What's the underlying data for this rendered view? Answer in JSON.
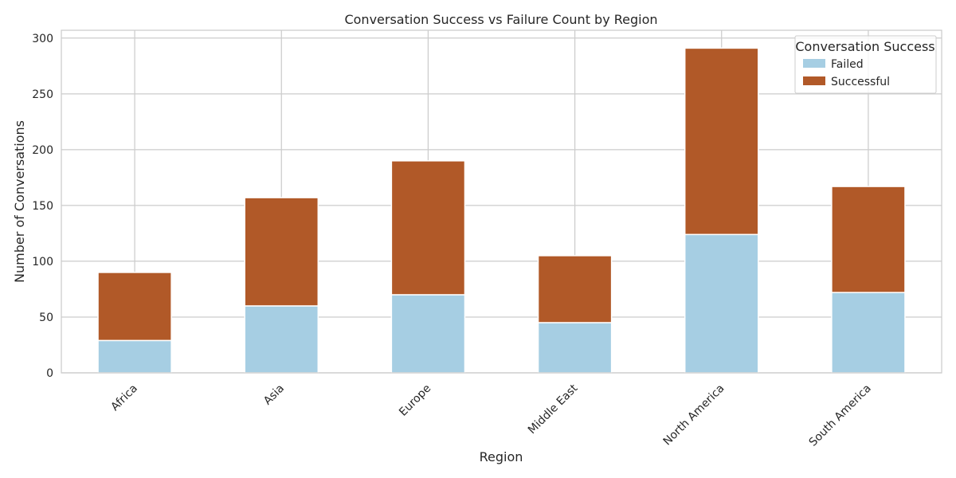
{
  "chart_data": {
    "type": "bar",
    "stacked": true,
    "title": "Conversation Success vs Failure Count by Region",
    "xlabel": "Region",
    "ylabel": "Number of Conversations",
    "categories": [
      "Africa",
      "Asia",
      "Europe",
      "Middle East",
      "North America",
      "South America"
    ],
    "series": [
      {
        "name": "Failed",
        "color": "#a6cee3",
        "values": [
          29,
          60,
          70,
          45,
          124,
          72
        ]
      },
      {
        "name": "Successful",
        "color": "#b15928",
        "values": [
          61,
          97,
          120,
          60,
          167,
          95
        ]
      }
    ],
    "ylim": [
      0,
      307
    ],
    "yticks": [
      0,
      50,
      100,
      150,
      200,
      250,
      300
    ],
    "grid": true,
    "legend": {
      "title": "Conversation Success",
      "position": "top-right"
    }
  }
}
